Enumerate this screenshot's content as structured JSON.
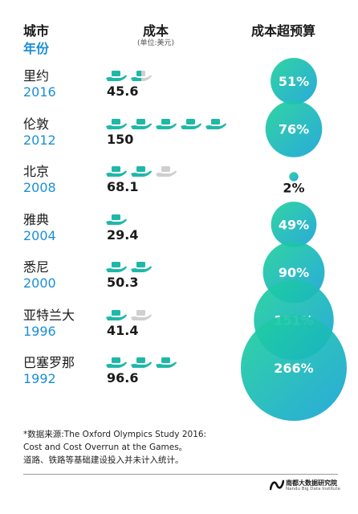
{
  "header": {
    "city_label": "城市",
    "year_label": "年份",
    "cost_label": "成本",
    "cost_unit": "(单位:美元)",
    "overrun_label": "成本超预算"
  },
  "chart_data": {
    "type": "bubble",
    "colors": {
      "gradient_start": "#1cc7a0",
      "gradient_end": "#1aa0d6",
      "icon_full": "#1fb8a8",
      "icon_empty": "#c8c8c8",
      "year_text": "#1a8fd6"
    },
    "rows": [
      {
        "city": "里约",
        "year": "2016",
        "cost": 45.6,
        "cost_label": "45.6",
        "icons_full": 1,
        "icons_partial": 1,
        "icons_empty": 0,
        "overrun": 51,
        "overrun_label": "51%"
      },
      {
        "city": "伦敦",
        "year": "2012",
        "cost": 150,
        "cost_label": "150",
        "icons_full": 5,
        "icons_partial": 0,
        "icons_empty": 0,
        "overrun": 76,
        "overrun_label": "76%"
      },
      {
        "city": "北京",
        "year": "2008",
        "cost": 68.1,
        "cost_label": "68.1",
        "icons_full": 2,
        "icons_partial": 0,
        "icons_empty": 1,
        "overrun": 2,
        "overrun_label": "2%"
      },
      {
        "city": "雅典",
        "year": "2004",
        "cost": 29.4,
        "cost_label": "29.4",
        "icons_full": 1,
        "icons_partial": 0,
        "icons_empty": 0,
        "overrun": 49,
        "overrun_label": "49%"
      },
      {
        "city": "悉尼",
        "year": "2000",
        "cost": 50.3,
        "cost_label": "50.3",
        "icons_full": 2,
        "icons_partial": 0,
        "icons_empty": 0,
        "overrun": 90,
        "overrun_label": "90%"
      },
      {
        "city": "亚特兰大",
        "year": "1996",
        "cost": 41.4,
        "cost_label": "41.4",
        "icons_full": 1,
        "icons_partial": 0,
        "icons_empty": 1,
        "overrun": 151,
        "overrun_label": "151%"
      },
      {
        "city": "巴塞罗那",
        "year": "1992",
        "cost": 96.6,
        "cost_label": "96.6",
        "icons_full": 3,
        "icons_partial": 0,
        "icons_empty": 0,
        "overrun": 266,
        "overrun_label": "266%"
      }
    ]
  },
  "notes": {
    "line1": "*数据来源:The Oxford Olympics Study 2016:",
    "line2": "Cost and Cost Overrun at the Games。",
    "line3": "道路、铁路等基础建设投入并未计入统计。"
  },
  "logo": {
    "name_cn": "南都大数据研究院",
    "name_en": "Nandu Big Data Institute",
    "icon": "nandu-logo-icon"
  }
}
